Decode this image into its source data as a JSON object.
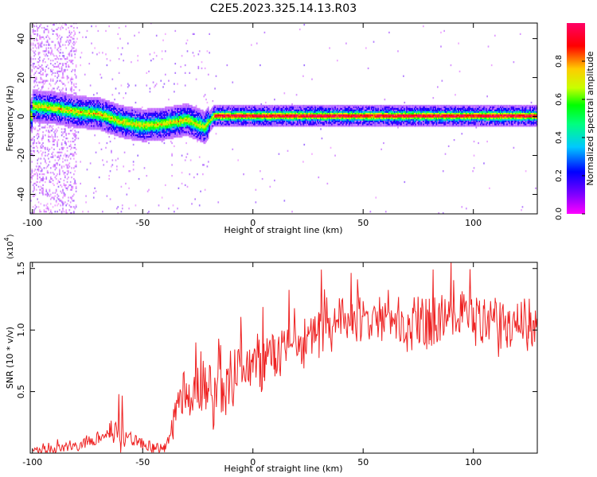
{
  "title": "C2E5.2023.325.14.13.R03",
  "colors": {
    "snr_line": "#ee2222",
    "colormap": [
      "#ff00ff",
      "#8000ff",
      "#0000ff",
      "#00c8ff",
      "#00ff80",
      "#00ff00",
      "#c8ff00",
      "#ffcc00",
      "#ff0000",
      "#ff0066"
    ]
  },
  "chart_data": [
    {
      "type": "heatmap",
      "xlabel": "Height of straight line (km)",
      "ylabel": "Frequency (Hz)",
      "xlim": [
        -101,
        129
      ],
      "ylim": [
        -50,
        48
      ],
      "xticks": [
        {
          "v": -100,
          "label": "-100"
        },
        {
          "v": -50,
          "label": "-50"
        },
        {
          "v": 0,
          "label": "0"
        },
        {
          "v": 50,
          "label": "50"
        },
        {
          "v": 100,
          "label": "100"
        }
      ],
      "yticks": [
        {
          "v": -40,
          "label": "-40"
        },
        {
          "v": -20,
          "label": "-20"
        },
        {
          "v": 0,
          "label": "0"
        },
        {
          "v": 20,
          "label": "20"
        },
        {
          "v": 40,
          "label": "40"
        }
      ],
      "ridge": [
        {
          "x": -100,
          "y": 5
        },
        {
          "x": -90,
          "y": 4
        },
        {
          "x": -80,
          "y": 2
        },
        {
          "x": -70,
          "y": 1
        },
        {
          "x": -60,
          "y": -3
        },
        {
          "x": -50,
          "y": -5
        },
        {
          "x": -40,
          "y": -4
        },
        {
          "x": -30,
          "y": -2
        },
        {
          "x": -22,
          "y": -6
        },
        {
          "x": -18,
          "y": 0
        },
        {
          "x": -10,
          "y": 0
        },
        {
          "x": 0,
          "y": 0
        },
        {
          "x": 129,
          "y": 0
        }
      ],
      "colorbar": {
        "label": "Normalized spectral amplitude",
        "range": [
          0,
          1
        ],
        "ticks": [
          {
            "v": 0.0,
            "label": "0.0"
          },
          {
            "v": 0.2,
            "label": "0.2"
          },
          {
            "v": 0.4,
            "label": "0.4"
          },
          {
            "v": 0.6,
            "label": "0.6"
          },
          {
            "v": 0.8,
            "label": "0.8"
          }
        ]
      }
    },
    {
      "type": "line",
      "xlabel": "Height of straight line (km)",
      "ylabel": "SNR (10 * v/v)",
      "yscale_label": "(x10",
      "yscale_exp": "4",
      "yscale_close": ")",
      "xlim": [
        -101,
        129
      ],
      "ylim": [
        0.0,
        1.55
      ],
      "xticks": [
        {
          "v": -100,
          "label": "-100"
        },
        {
          "v": -50,
          "label": "-50"
        },
        {
          "v": 0,
          "label": "0"
        },
        {
          "v": 50,
          "label": "50"
        },
        {
          "v": 100,
          "label": "100"
        }
      ],
      "yticks": [
        {
          "v": 0.5,
          "label": "0.5"
        },
        {
          "v": 1.0,
          "label": "1.0"
        },
        {
          "v": 1.5,
          "label": "1.5"
        }
      ],
      "series": [
        {
          "x": [
            -100,
            -90,
            -80,
            -75,
            -70,
            -65,
            -60,
            -55,
            -50,
            -45,
            -40,
            -36,
            -33,
            -30,
            -28,
            -25,
            -22,
            -20,
            -18,
            -15,
            -13,
            -10,
            -5,
            0,
            5,
            10,
            15,
            20,
            25,
            30,
            35,
            40,
            45,
            50,
            55,
            60,
            65,
            70,
            75,
            80,
            85,
            90,
            95,
            100,
            105,
            110,
            115,
            120,
            125,
            129
          ],
          "y": [
            0.02,
            0.03,
            0.05,
            0.1,
            0.12,
            0.15,
            0.18,
            0.12,
            0.08,
            0.04,
            0.03,
            0.2,
            0.45,
            0.5,
            0.35,
            0.6,
            0.55,
            0.65,
            0.3,
            0.6,
            0.45,
            0.6,
            0.7,
            0.65,
            0.75,
            0.8,
            0.85,
            0.85,
            0.95,
            1.0,
            1.02,
            1.05,
            1.08,
            1.1,
            1.1,
            1.12,
            1.1,
            1.05,
            1.05,
            1.0,
            1.05,
            1.1,
            1.15,
            1.1,
            1.05,
            1.05,
            1.0,
            1.1,
            1.05,
            1.0
          ]
        }
      ]
    }
  ]
}
